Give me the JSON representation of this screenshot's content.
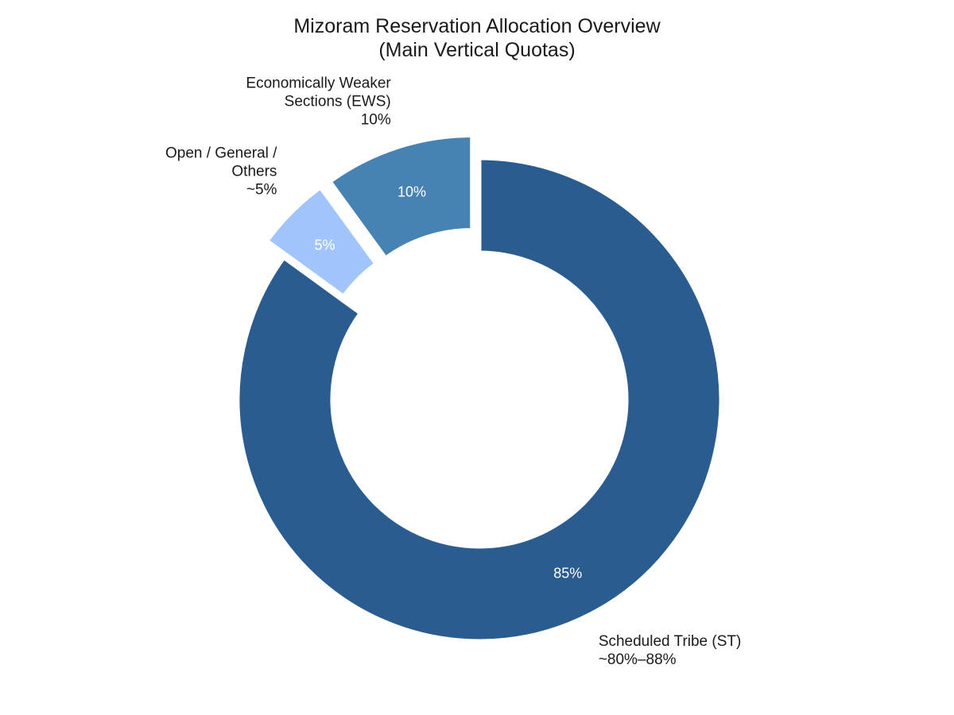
{
  "chart_data": {
    "type": "pie",
    "subtype": "donut",
    "title": "Mizoram Reservation Allocation Overview",
    "subtitle": "(Main Vertical Quotas)",
    "start": "clockwise-from-top",
    "slices": [
      {
        "value": 85,
        "inner_label": "85%",
        "label_lines": [
          "Scheduled Tribe (ST)",
          "~80%–88%"
        ],
        "color": "#2b5c8f",
        "inner_text_color": "#ffffff",
        "exploded": false
      },
      {
        "value": 5,
        "inner_label": "5%",
        "label_lines": [
          "Open / General /",
          "Others",
          "~5%"
        ],
        "color": "#a1c4fd",
        "inner_text_color": "#ffffff",
        "exploded": true
      },
      {
        "value": 10,
        "inner_label": "10%",
        "label_lines": [
          "Economically Weaker",
          "Sections (EWS)",
          "10%"
        ],
        "color": "#4682b4",
        "inner_text_color": "#ffffff",
        "exploded": true
      }
    ],
    "legend": "none"
  }
}
